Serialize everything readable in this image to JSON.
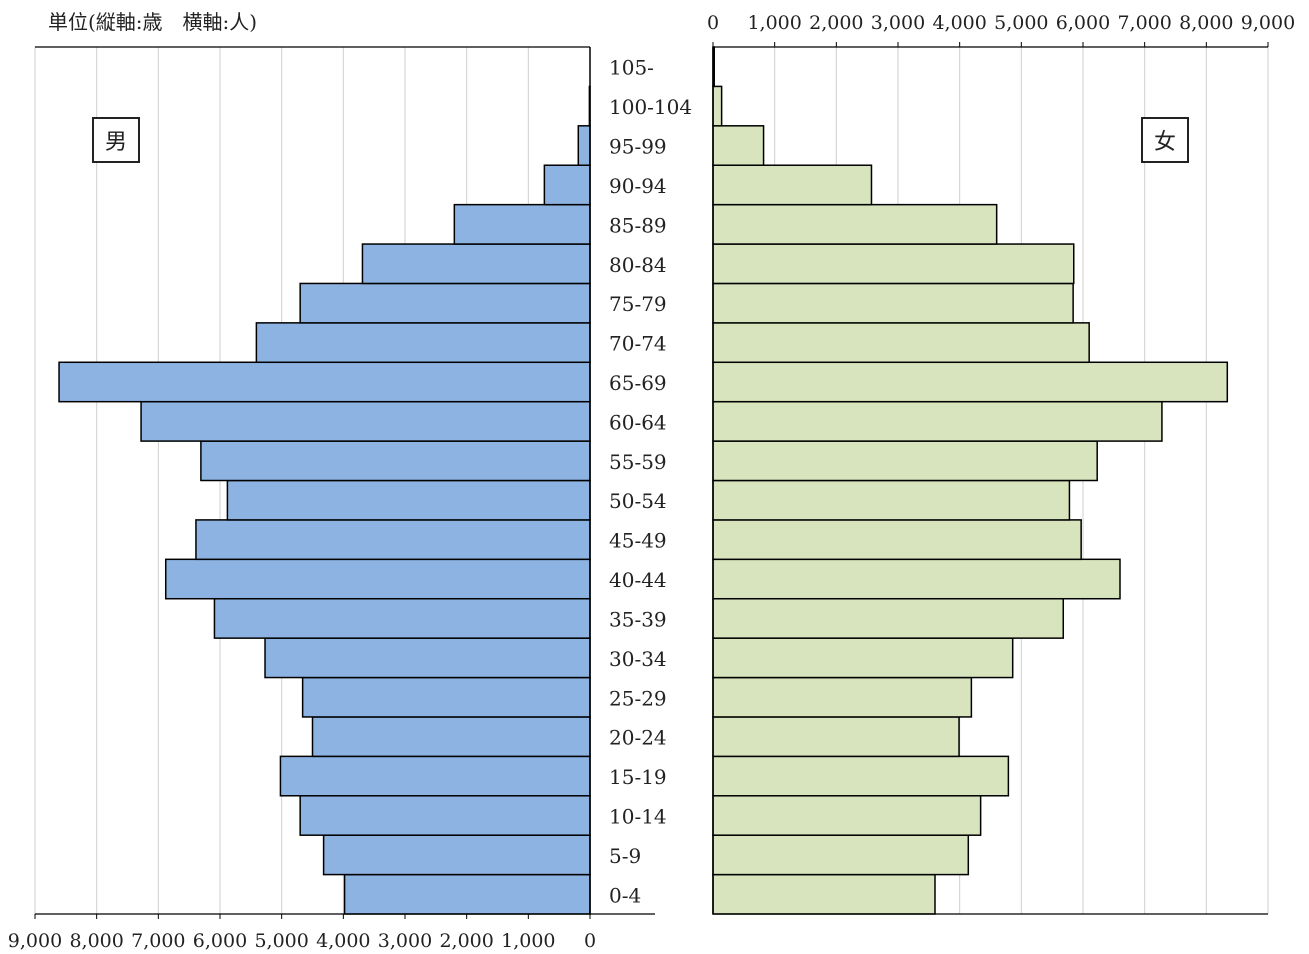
{
  "unit_label": "単位(縦軸:歳　横軸:人)",
  "legend": {
    "male": "男",
    "female": "女"
  },
  "chart_data": {
    "type": "bar",
    "subtype": "population-pyramid",
    "categories": [
      "0-4",
      "5-9",
      "10-14",
      "15-19",
      "20-24",
      "25-29",
      "30-34",
      "35-39",
      "40-44",
      "45-49",
      "50-54",
      "55-59",
      "60-64",
      "65-69",
      "70-74",
      "75-79",
      "80-84",
      "85-89",
      "90-94",
      "95-99",
      "100-104",
      "105-"
    ],
    "series": [
      {
        "name": "男",
        "color": "#8db3e2",
        "values": [
          3980,
          4320,
          4700,
          5020,
          4500,
          4660,
          5270,
          6090,
          6880,
          6390,
          5880,
          6310,
          7280,
          8610,
          5410,
          4700,
          3690,
          2200,
          740,
          190,
          10,
          0
        ]
      },
      {
        "name": "女",
        "color": "#d7e4bd",
        "values": [
          3600,
          4140,
          4340,
          4790,
          3990,
          4190,
          4860,
          5680,
          6600,
          5970,
          5780,
          6230,
          7280,
          8340,
          6100,
          5840,
          5850,
          4600,
          2570,
          820,
          140,
          20
        ]
      }
    ],
    "male_ticks": [
      "9,000",
      "8,000",
      "7,000",
      "6,000",
      "5,000",
      "4,000",
      "3,000",
      "2,000",
      "1,000",
      "0"
    ],
    "female_ticks": [
      "0",
      "1,000",
      "2,000",
      "3,000",
      "4,000",
      "5,000",
      "6,000",
      "7,000",
      "8,000",
      "9,000"
    ],
    "xlim": [
      0,
      9000
    ],
    "grid": true,
    "ylabel": "歳",
    "xlabel": "人"
  }
}
